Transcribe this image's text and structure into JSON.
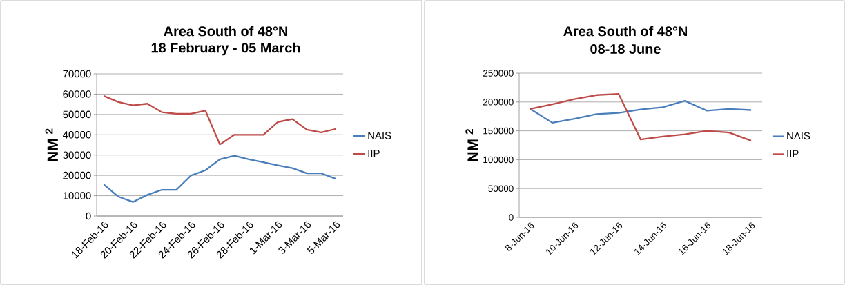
{
  "chart_data": [
    {
      "type": "line",
      "title": "Area South of 48°N",
      "subtitle": "18 February - 05 March",
      "ylabel": "NM $^{2}$",
      "categories": [
        "18-Feb-16",
        null,
        "20-Feb-16",
        null,
        "22-Feb-16",
        null,
        "24-Feb-16",
        null,
        "26-Feb-16",
        null,
        "28-Feb-16",
        null,
        "1-Mar-16",
        null,
        "3-Mar-16",
        null,
        "5-Mar-16"
      ],
      "series": [
        {
          "name": "NAIS",
          "color": "#4a7ebb",
          "values": [
            15500,
            9500,
            6900,
            10400,
            12900,
            12900,
            19900,
            22500,
            27900,
            29700,
            27900,
            26500,
            24900,
            23600,
            21000,
            21000,
            18300
          ]
        },
        {
          "name": "IIP",
          "color": "#be4b48",
          "values": [
            59100,
            56100,
            54500,
            55300,
            51100,
            50300,
            50300,
            51900,
            35200,
            40000,
            40000,
            40000,
            46300,
            47700,
            42500,
            41200,
            42900
          ]
        }
      ],
      "ylim": [
        0,
        70000
      ],
      "yticks": [
        0,
        10000,
        20000,
        30000,
        40000,
        50000,
        60000,
        70000
      ],
      "grid": "y",
      "legend": "right"
    },
    {
      "type": "line",
      "title": "Area South of 48°N",
      "subtitle": "08-18 June",
      "ylabel": "NM $^{2}$",
      "categories": [
        "8-Jun-16",
        null,
        "10-Jun-16",
        null,
        "12-Jun-16",
        null,
        "14-Jun-16",
        null,
        "16-Jun-16",
        null,
        "18-Jun-16"
      ],
      "series": [
        {
          "name": "NAIS",
          "color": "#4a7ebb",
          "values": [
            188000,
            164000,
            171000,
            179000,
            181000,
            187000,
            191000,
            202000,
            185000,
            188000,
            186000
          ]
        },
        {
          "name": "IIP",
          "color": "#be4b48",
          "values": [
            188000,
            196000,
            205000,
            212000,
            214000,
            135000,
            140000,
            144000,
            150000,
            147000,
            133000
          ]
        }
      ],
      "ylim": [
        0,
        250000
      ],
      "yticks": [
        0,
        50000,
        100000,
        150000,
        200000,
        250000
      ],
      "grid": "y",
      "legend": "right"
    }
  ]
}
